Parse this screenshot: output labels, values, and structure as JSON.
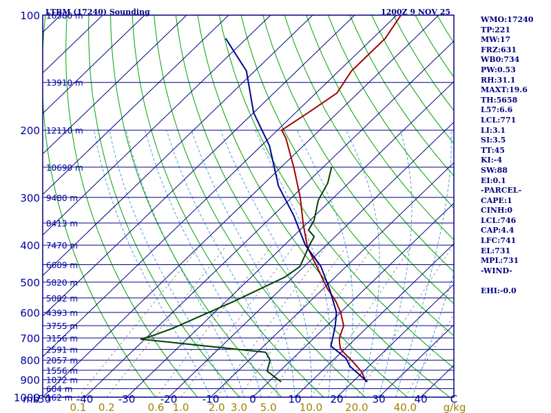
{
  "chart_data": {
    "type": "line",
    "title": "LTBM (17240) Sounding",
    "subtitle": "1200Z  9 NOV 25",
    "ylabel_unit": "mb",
    "xlabel_unit": "C",
    "mixing_ratio_unit": "g/kg",
    "ylim": [
      1000,
      100
    ],
    "xlim_at_bottom": [
      -50,
      50
    ],
    "pressure_ticks": [
      100,
      200,
      300,
      400,
      500,
      600,
      700,
      800,
      900,
      1000
    ],
    "temperature_ticks": [
      -50,
      -40,
      -30,
      -20,
      -10,
      0,
      10,
      20,
      30,
      40
    ],
    "mixing_ratio_ticks": [
      "0.1",
      "0.2",
      "0.6",
      "1.0",
      "2.0",
      "3.0",
      "5.0",
      "10.0",
      "20.0",
      "40.0"
    ],
    "height_levels": [
      {
        "pressure": 100,
        "label": "16380 m"
      },
      {
        "pressure": 150,
        "label": "13910 m"
      },
      {
        "pressure": 200,
        "label": "12110 m"
      },
      {
        "pressure": 250,
        "label": "10690 m"
      },
      {
        "pressure": 300,
        "label": "9480 m"
      },
      {
        "pressure": 350,
        "label": "8413 m"
      },
      {
        "pressure": 400,
        "label": "7470 m"
      },
      {
        "pressure": 450,
        "label": "6609 m"
      },
      {
        "pressure": 500,
        "label": "5820 m"
      },
      {
        "pressure": 550,
        "label": "5082 m"
      },
      {
        "pressure": 600,
        "label": "4393 m"
      },
      {
        "pressure": 650,
        "label": "3755 m"
      },
      {
        "pressure": 700,
        "label": "3156 m"
      },
      {
        "pressure": 750,
        "label": "2591 m"
      },
      {
        "pressure": 800,
        "label": "2057 m"
      },
      {
        "pressure": 850,
        "label": "1556 m"
      },
      {
        "pressure": 900,
        "label": "1072 m"
      },
      {
        "pressure": 950,
        "label": "604 m"
      },
      {
        "pressure": 1000,
        "label": "162 m"
      }
    ],
    "series": [
      {
        "name": "Temperature",
        "color": "#a00000",
        "points": [
          [
            23.2,
            912
          ],
          [
            19.8,
            860
          ],
          [
            15.5,
            812
          ],
          [
            10.2,
            760
          ],
          [
            8.8,
            745
          ],
          [
            7.4,
            723
          ],
          [
            6,
            700
          ],
          [
            4,
            650
          ],
          [
            0,
            600
          ],
          [
            -4,
            560
          ],
          [
            -9,
            520
          ],
          [
            -17,
            455
          ],
          [
            -24,
            405
          ],
          [
            -31,
            350
          ],
          [
            -38,
            300
          ],
          [
            -47,
            250
          ],
          [
            -56,
            210
          ],
          [
            -59,
            200
          ],
          [
            -57,
            180
          ],
          [
            -55,
            160
          ],
          [
            -57,
            140
          ],
          [
            -57,
            115
          ],
          [
            -59,
            100
          ]
        ]
      },
      {
        "name": "Dewpoint",
        "color": "#004000",
        "points": [
          [
            3,
            912
          ],
          [
            -3,
            855
          ],
          [
            -5,
            800
          ],
          [
            -8,
            763
          ],
          [
            -41,
            705
          ],
          [
            -39,
            690
          ],
          [
            -36,
            660
          ],
          [
            -33,
            620
          ],
          [
            -28,
            560
          ],
          [
            -22,
            485
          ],
          [
            -21,
            455
          ],
          [
            -24,
            400
          ],
          [
            -25,
            380
          ],
          [
            -28,
            365
          ],
          [
            -29,
            345
          ],
          [
            -33,
            305
          ],
          [
            -35,
            275
          ],
          [
            -38,
            250
          ]
        ]
      },
      {
        "name": "Parcel",
        "color": "#000090",
        "points": [
          [
            23.5,
            912
          ],
          [
            15.5,
            830
          ],
          [
            12.5,
            790
          ],
          [
            6,
            735
          ],
          [
            2,
            650
          ],
          [
            -1,
            600
          ],
          [
            -8,
            525
          ],
          [
            -16,
            455
          ],
          [
            -25,
            400
          ],
          [
            -35,
            335
          ],
          [
            -46,
            280
          ],
          [
            -58,
            220
          ],
          [
            -70,
            180
          ],
          [
            -82,
            140
          ],
          [
            -95,
            115
          ]
        ]
      }
    ],
    "indices": [
      "WMO:17240",
      "TP:221",
      "MW:17",
      "FRZ:631",
      "WB0:734",
      "PW:0.53",
      "RH:31.1",
      "MAXT:19.6",
      "TH:5658",
      "L57:6.6",
      "LCL:771",
      "LI:3.1",
      "SI:3.5",
      "TT:45",
      "KI:-4",
      "SW:88",
      "EI:0.1",
      "-PARCEL-",
      "CAPE:1",
      "CINH:0",
      "LCL:746",
      "CAP:4.4",
      "LFC:741",
      "EL:731",
      "MPL:731",
      "-WIND-",
      "",
      "EHI:-0.0"
    ]
  },
  "colors": {
    "frame": "#000080",
    "isobar": "#000080",
    "isotherm": "#000080",
    "dry_adiabat": "#00a000",
    "moist_adiabat": "#4aa0d8",
    "mixing_ratio": "#909090",
    "axis_text": "#0000a0",
    "mixing_text": "#a08000"
  }
}
